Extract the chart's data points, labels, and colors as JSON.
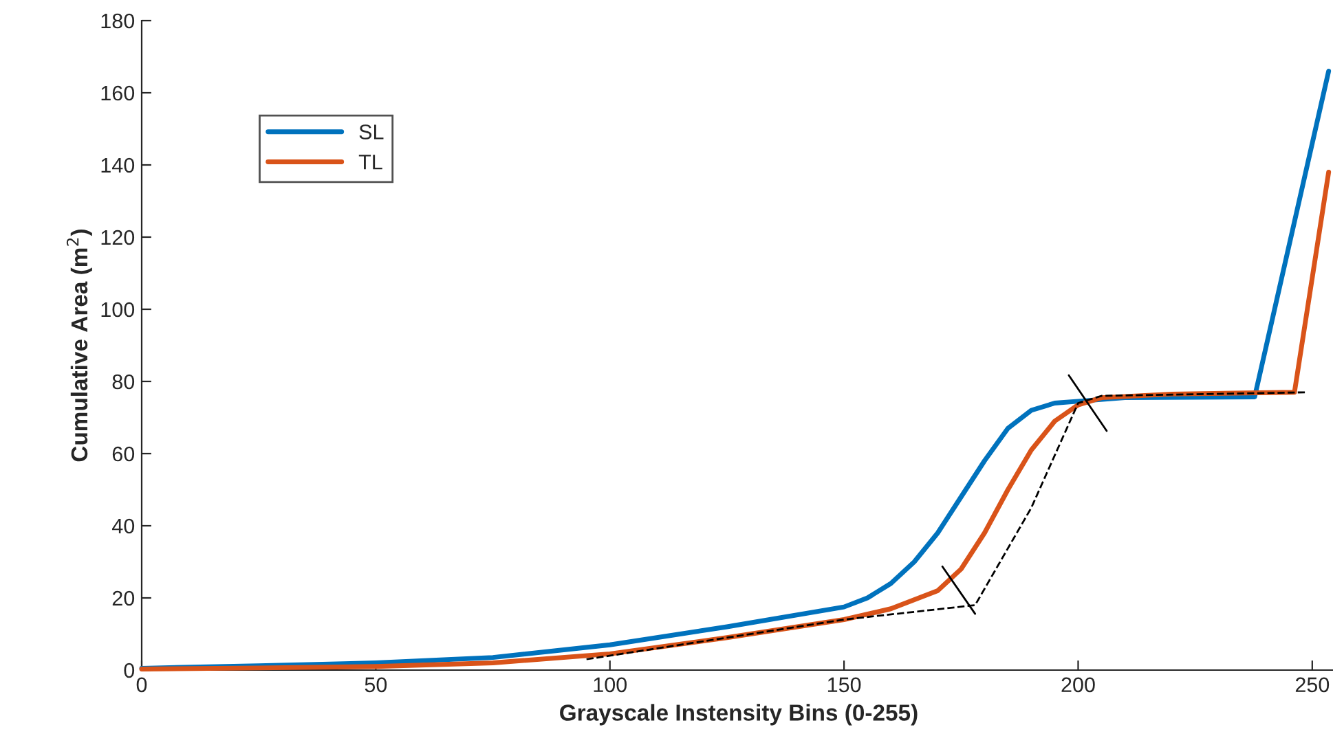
{
  "chart_data": {
    "type": "line",
    "xlabel": "Grayscale Instensity Bins (0-255)",
    "ylabel": "Cumulative Area (m$^{2}$)",
    "xlim": [
      0,
      255
    ],
    "xticks": [
      0,
      50,
      100,
      150,
      200,
      250
    ],
    "ylim": [
      0,
      180
    ],
    "yticks": [
      0,
      20,
      40,
      60,
      80,
      100,
      120,
      140,
      160,
      180
    ],
    "grid": false,
    "legend": "top left",
    "series": [
      {
        "name": "SL",
        "color": "#0072bd",
        "x": [
          0,
          25,
          50,
          75,
          100,
          125,
          150,
          155,
          160,
          165,
          170,
          175,
          180,
          185,
          190,
          195,
          200,
          210,
          225,
          237.7,
          253.5
        ],
        "values": [
          0.5,
          1.2,
          2,
          3.5,
          7,
          12,
          17.5,
          20,
          24,
          30,
          38,
          48,
          58,
          67,
          72,
          74,
          74.5,
          75.5,
          75.6,
          75.7,
          166
        ]
      },
      {
        "name": "TL",
        "color": "#d95319",
        "x": [
          0,
          25,
          50,
          75,
          100,
          125,
          150,
          160,
          170,
          175,
          180,
          185,
          190,
          195,
          200,
          205,
          220,
          246.2,
          253.5
        ],
        "values": [
          0.3,
          0.6,
          1,
          2,
          4.5,
          9,
          14,
          17,
          22,
          28,
          38,
          50,
          61,
          69,
          73.5,
          75.5,
          76.5,
          77,
          138
        ]
      },
      {
        "color": "#000000",
        "line_style": "dashed",
        "x": [
          95,
          120,
          150,
          178,
          190,
          200,
          205,
          249
        ],
        "values": [
          3,
          8,
          14,
          18,
          45,
          74,
          76,
          77
        ]
      },
      {
        "color": "#000000",
        "line_style": "solid",
        "x": [
          198,
          206.1
        ],
        "values": [
          81.7,
          66.3
        ]
      },
      {
        "color": "#000000",
        "line_style": "solid",
        "x": [
          171,
          178
        ],
        "values": [
          28.7,
          15.6
        ]
      }
    ]
  }
}
